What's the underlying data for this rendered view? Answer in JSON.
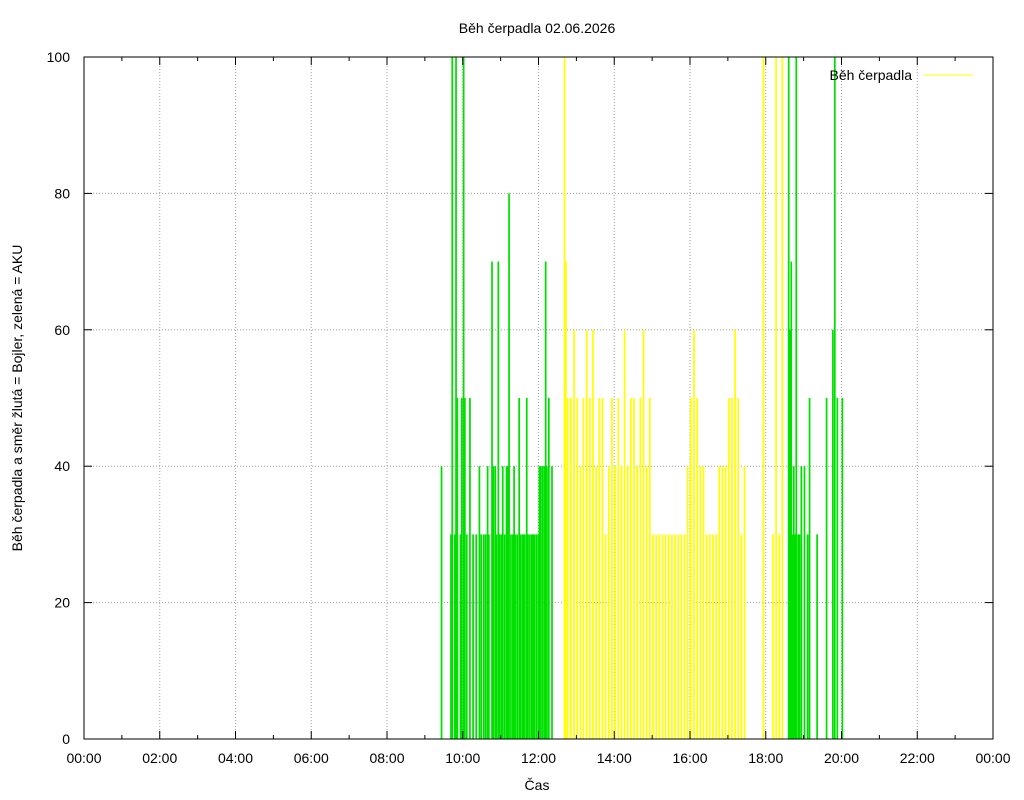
{
  "chart_data": {
    "type": "bar",
    "title": "Běh čerpadla 02.06.2026",
    "xlabel": "Čas",
    "ylabel": "Běh čerpadla a směr žlutá = Bojler, zelená = AKU",
    "xlim_minutes": [
      0,
      1440
    ],
    "ylim": [
      0,
      100
    ],
    "x_ticks": [
      "00:00",
      "02:00",
      "04:00",
      "06:00",
      "08:00",
      "10:00",
      "12:00",
      "14:00",
      "16:00",
      "18:00",
      "20:00",
      "22:00",
      "00:00"
    ],
    "y_ticks": [
      0,
      20,
      40,
      60,
      80,
      100
    ],
    "grid": true,
    "legend_position": "top-right",
    "legend": [
      {
        "label": "Běh čerpadla",
        "color": "#ffff00"
      }
    ],
    "colors": {
      "green": "#00e000",
      "yellow": "#ffff00"
    },
    "series": [
      {
        "color_key": "green",
        "points": [
          [
            "09:25",
            40
          ],
          [
            "09:40",
            30
          ],
          [
            "09:42",
            100
          ],
          [
            "09:46",
            30
          ],
          [
            "09:48",
            100
          ],
          [
            "09:50",
            50
          ],
          [
            "09:55",
            30
          ],
          [
            "09:57",
            50
          ],
          [
            "10:00",
            100
          ],
          [
            "10:02",
            50
          ],
          [
            "10:05",
            30
          ],
          [
            "10:10",
            50
          ],
          [
            "10:15",
            30
          ],
          [
            "10:20",
            30
          ],
          [
            "10:25",
            40
          ],
          [
            "10:28",
            30
          ],
          [
            "10:32",
            30
          ],
          [
            "10:35",
            30
          ],
          [
            "10:38",
            40
          ],
          [
            "10:40",
            30
          ],
          [
            "10:45",
            70
          ],
          [
            "10:47",
            40
          ],
          [
            "10:50",
            40
          ],
          [
            "10:52",
            30
          ],
          [
            "10:55",
            70
          ],
          [
            "10:57",
            30
          ],
          [
            "11:00",
            30
          ],
          [
            "11:02",
            40
          ],
          [
            "11:05",
            30
          ],
          [
            "11:08",
            40
          ],
          [
            "11:10",
            40
          ],
          [
            "11:12",
            80
          ],
          [
            "11:15",
            30
          ],
          [
            "11:18",
            30
          ],
          [
            "11:20",
            40
          ],
          [
            "11:22",
            30
          ],
          [
            "11:25",
            30
          ],
          [
            "11:28",
            50
          ],
          [
            "11:30",
            30
          ],
          [
            "11:33",
            30
          ],
          [
            "11:35",
            30
          ],
          [
            "11:37",
            30
          ],
          [
            "11:40",
            50
          ],
          [
            "11:42",
            30
          ],
          [
            "11:45",
            30
          ],
          [
            "11:48",
            30
          ],
          [
            "11:50",
            30
          ],
          [
            "11:52",
            30
          ],
          [
            "11:55",
            30
          ],
          [
            "11:58",
            30
          ],
          [
            "12:00",
            40
          ],
          [
            "12:02",
            40
          ],
          [
            "12:05",
            40
          ],
          [
            "12:08",
            40
          ],
          [
            "12:10",
            70
          ],
          [
            "12:12",
            40
          ],
          [
            "12:15",
            50
          ],
          [
            "12:20",
            40
          ],
          [
            "18:35",
            100
          ],
          [
            "18:37",
            60
          ],
          [
            "18:39",
            70
          ],
          [
            "18:41",
            30
          ],
          [
            "18:43",
            40
          ],
          [
            "18:45",
            30
          ],
          [
            "18:47",
            100
          ],
          [
            "18:50",
            30
          ],
          [
            "18:52",
            30
          ],
          [
            "18:55",
            40
          ],
          [
            "19:00",
            40
          ],
          [
            "19:05",
            30
          ],
          [
            "19:08",
            50
          ],
          [
            "19:20",
            30
          ],
          [
            "19:35",
            50
          ],
          [
            "19:45",
            60
          ],
          [
            "19:48",
            100
          ],
          [
            "19:52",
            50
          ],
          [
            "20:00",
            50
          ]
        ]
      },
      {
        "color_key": "yellow",
        "points": [
          [
            "12:40",
            100
          ],
          [
            "12:42",
            70
          ],
          [
            "12:45",
            50
          ],
          [
            "12:50",
            50
          ],
          [
            "12:55",
            60
          ],
          [
            "13:00",
            50
          ],
          [
            "13:05",
            40
          ],
          [
            "13:10",
            50
          ],
          [
            "13:15",
            60
          ],
          [
            "13:20",
            50
          ],
          [
            "13:25",
            60
          ],
          [
            "13:30",
            40
          ],
          [
            "13:35",
            50
          ],
          [
            "13:40",
            50
          ],
          [
            "13:45",
            30
          ],
          [
            "13:50",
            40
          ],
          [
            "13:55",
            50
          ],
          [
            "14:00",
            40
          ],
          [
            "14:05",
            50
          ],
          [
            "14:10",
            40
          ],
          [
            "14:15",
            60
          ],
          [
            "14:20",
            40
          ],
          [
            "14:25",
            50
          ],
          [
            "14:30",
            50
          ],
          [
            "14:35",
            40
          ],
          [
            "14:40",
            50
          ],
          [
            "14:45",
            60
          ],
          [
            "14:50",
            40
          ],
          [
            "14:55",
            50
          ],
          [
            "15:00",
            30
          ],
          [
            "15:05",
            30
          ],
          [
            "15:10",
            30
          ],
          [
            "15:15",
            30
          ],
          [
            "15:20",
            30
          ],
          [
            "15:25",
            30
          ],
          [
            "15:30",
            30
          ],
          [
            "15:35",
            30
          ],
          [
            "15:40",
            30
          ],
          [
            "15:45",
            30
          ],
          [
            "15:50",
            30
          ],
          [
            "15:55",
            40
          ],
          [
            "16:00",
            50
          ],
          [
            "16:05",
            60
          ],
          [
            "16:10",
            50
          ],
          [
            "16:15",
            40
          ],
          [
            "16:20",
            40
          ],
          [
            "16:25",
            30
          ],
          [
            "16:30",
            30
          ],
          [
            "16:35",
            30
          ],
          [
            "16:40",
            30
          ],
          [
            "16:45",
            40
          ],
          [
            "16:50",
            40
          ],
          [
            "16:55",
            40
          ],
          [
            "17:00",
            50
          ],
          [
            "17:05",
            50
          ],
          [
            "17:10",
            60
          ],
          [
            "17:15",
            50
          ],
          [
            "17:20",
            30
          ],
          [
            "17:25",
            40
          ],
          [
            "17:55",
            100
          ],
          [
            "18:10",
            30
          ],
          [
            "18:15",
            100
          ],
          [
            "18:20",
            30
          ],
          [
            "18:25",
            100
          ]
        ]
      }
    ]
  }
}
